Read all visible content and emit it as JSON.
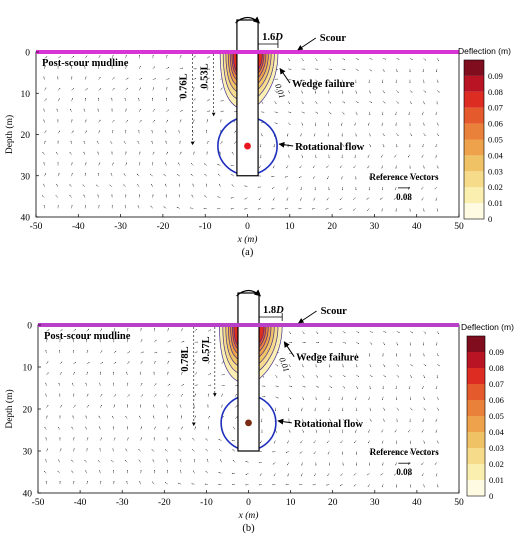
{
  "chart_data": [
    {
      "type": "contour",
      "panel_label": "(a)",
      "xlabel": "x (m)",
      "ylabel": "Depth (m)",
      "xlim": [
        -50,
        50
      ],
      "ylim": [
        0,
        40
      ],
      "y_inverted": true,
      "xticks": [
        "-50",
        "-40",
        "-30",
        "-20",
        "-10",
        "0",
        "10",
        "20",
        "30",
        "40",
        "50"
      ],
      "yticks": [
        "0",
        "10",
        "20",
        "30",
        "40"
      ],
      "colorbar": {
        "title": "Deflection (m)",
        "ticks": [
          "0.09",
          "0.08",
          "0.07",
          "0.06",
          "0.05",
          "0.04",
          "0.03",
          "0.02",
          "0.01",
          "0"
        ],
        "colors": [
          "#fffbe3",
          "#fbefb0",
          "#f6dc8a",
          "#f0c266",
          "#eda24b",
          "#e9813a",
          "#e45a2c",
          "#dd2c22",
          "#b81424",
          "#7f0d1e"
        ]
      },
      "annotations": {
        "scour": "Scour",
        "mudline": "Post-scour mudline",
        "wedge": "Wedge failure",
        "rotational": "Rotational flow",
        "width": "1.6",
        "width_unit": "D",
        "depth_long": "0.76L",
        "depth_short": "0.53L",
        "contour_label": "0.01",
        "reference_title": "Reference Vectors",
        "reference_value": "0.08"
      },
      "pile": {
        "x_left": -2.5,
        "x_right": 2.5,
        "bottom_depth": 30
      },
      "rotation_circle": {
        "cx": 0,
        "cy": 22.8,
        "r": 7.0
      },
      "rotation_center": {
        "x": 0,
        "y": 22.8,
        "color": "#e8141e"
      },
      "wedge_extent_x": 7.2,
      "failure_depths": {
        "long": 22.5,
        "short": 15.5
      },
      "colors": {
        "scour_line": "#d935d6",
        "circle": "#1e2fbd",
        "contours": "#3a2a8a"
      }
    },
    {
      "type": "contour",
      "panel_label": "(b)",
      "xlabel": "x (m)",
      "ylabel": "Depth (m)",
      "xlim": [
        -50,
        50
      ],
      "ylim": [
        0,
        40
      ],
      "y_inverted": true,
      "xticks": [
        "-50",
        "-40",
        "-30",
        "-20",
        "-10",
        "0",
        "10",
        "20",
        "30",
        "40",
        "50"
      ],
      "yticks": [
        "0",
        "10",
        "20",
        "30",
        "40"
      ],
      "colorbar": {
        "title": "Deflection (m)",
        "ticks": [
          "0.09",
          "0.08",
          "0.07",
          "0.06",
          "0.05",
          "0.04",
          "0.03",
          "0.02",
          "0.01",
          "0"
        ],
        "colors": [
          "#fffbe3",
          "#fbefb0",
          "#f6dc8a",
          "#f0c266",
          "#eda24b",
          "#e9813a",
          "#e45a2c",
          "#dd2c22",
          "#b81424",
          "#7f0d1e"
        ]
      },
      "annotations": {
        "scour": "Scour",
        "mudline": "Post-scour mudline",
        "wedge": "Wedge failure",
        "rotational": "Rotational flow",
        "width": "1.8",
        "width_unit": "D",
        "depth_long": "0.78L",
        "depth_short": "0.57L",
        "contour_label": "0.01",
        "reference_title": "Reference Vectors",
        "reference_value": "0.08"
      },
      "pile": {
        "x_left": -2.5,
        "x_right": 2.5,
        "bottom_depth": 30
      },
      "rotation_circle": {
        "cx": 0,
        "cy": 23.3,
        "r": 6.5
      },
      "rotation_center": {
        "x": 0,
        "y": 23.3,
        "color": "#7a2a12"
      },
      "wedge_extent_x": 8.0,
      "failure_depths": {
        "long": 24,
        "short": 17
      },
      "colors": {
        "scour_line": "#b83fc8",
        "circle": "#1e2fbd",
        "contours": "#3a2a8a"
      }
    }
  ]
}
